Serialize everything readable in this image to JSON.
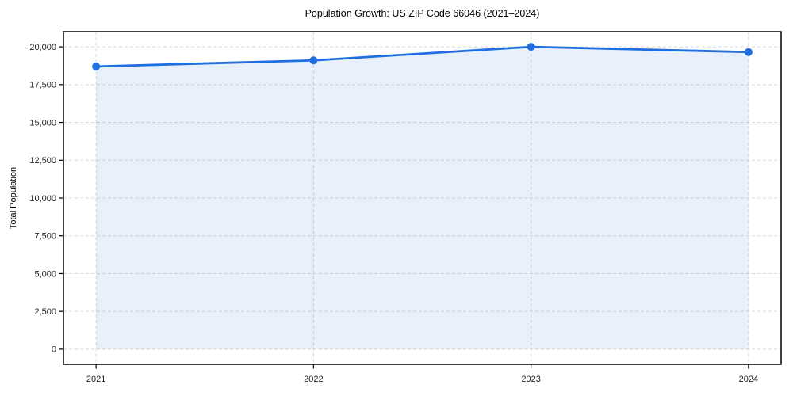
{
  "chart_data": {
    "type": "area",
    "title": "Population Growth: US ZIP Code 66046 (2021–2024)",
    "xlabel": "",
    "ylabel": "Total Population",
    "x": [
      2021,
      2022,
      2023,
      2024
    ],
    "series": [
      {
        "name": "Total Population",
        "values": [
          18700,
          19100,
          20000,
          19650
        ]
      }
    ],
    "xticks": [
      2021,
      2022,
      2023,
      2024
    ],
    "xtick_labels": [
      "2021",
      "2022",
      "2023",
      "2024"
    ],
    "yticks": [
      0,
      2500,
      5000,
      7500,
      10000,
      12500,
      15000,
      17500,
      20000
    ],
    "ytick_labels": [
      "0",
      "2,500",
      "5,000",
      "7,500",
      "10,000",
      "12,500",
      "15,000",
      "17,500",
      "20,000"
    ],
    "xlim": [
      2020.85,
      2024.15
    ],
    "ylim": [
      -1000,
      21000
    ],
    "grid": true,
    "grid_style": "dashed",
    "legend": "none",
    "fill_to": 0,
    "colors": {
      "line": "#1f6fe0",
      "marker": "#1f6fe0",
      "fill": "rgba(31,111,224,0.10)",
      "grid": "#d9d9d9",
      "spine": "#000000",
      "tick": "#000000",
      "tick_label": "#262626",
      "title": "#000000",
      "background": "#ffffff"
    }
  }
}
